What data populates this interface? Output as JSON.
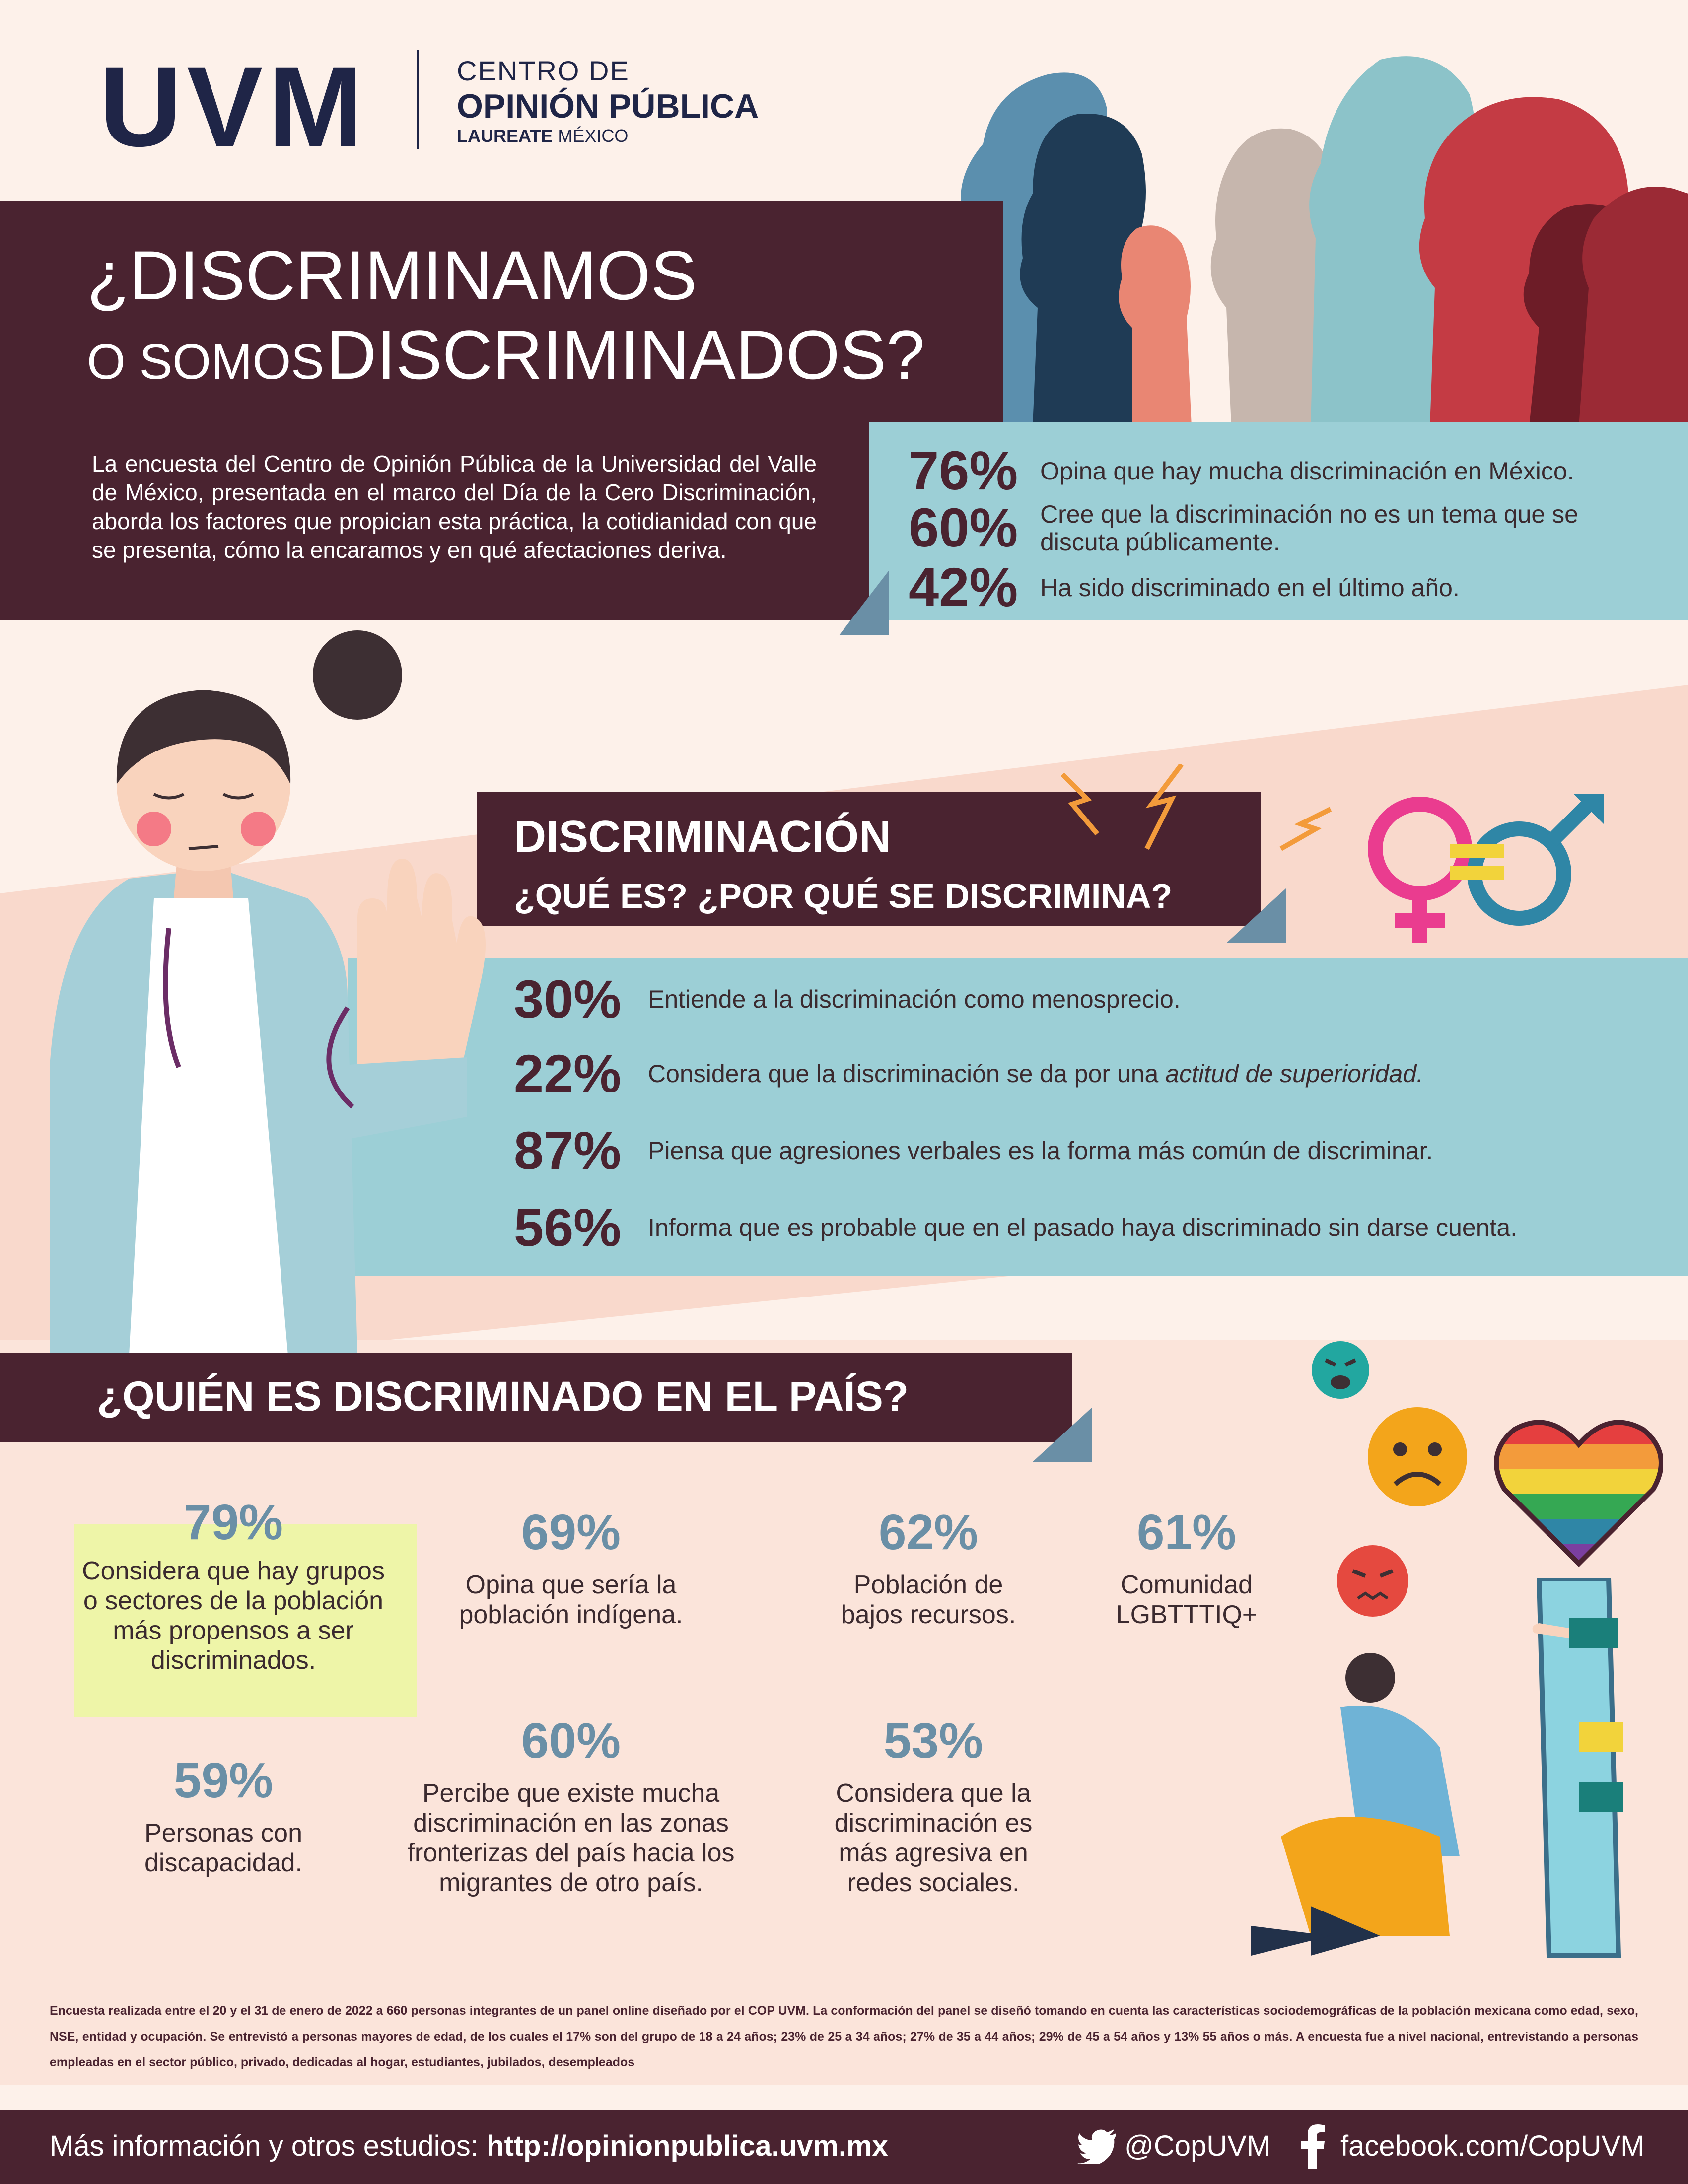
{
  "brand": {
    "logo": "UVM",
    "line1": "CENTRO DE",
    "line2": "OPINIÓN PÚBLICA",
    "line3a": "LAUREATE",
    "line3b": "MÉXICO"
  },
  "header": {
    "title_line1": "¿DISCRIMINAMOS",
    "title_line2_small": "O SOMOS",
    "title_line2_big": "DISCRIMINADOS?",
    "intro": "La encuesta del Centro de Opinión Pública de la Universidad del Valle de México, presentada en el marco del Día de la Cero Discriminación, aborda los factores que propician esta práctica, la cotidianidad con que se presenta, cómo la encaramos y en qué afectaciones deriva."
  },
  "top_stats": [
    {
      "pct": "76%",
      "text": "Opina que hay mucha discriminación en México."
    },
    {
      "pct": "60%",
      "text": "Cree que la discriminación no es un tema que se discuta públicamente."
    },
    {
      "pct": "42%",
      "text": "Ha sido discriminado en el último año."
    }
  ],
  "section2": {
    "title1": "DISCRIMINACIÓN",
    "title2": "¿QUÉ ES? ¿POR QUÉ SE DISCRIMINA?",
    "stats": [
      {
        "pct": "30%",
        "text": "Entiende a la discriminación como menosprecio."
      },
      {
        "pct": "22%",
        "text": "Considera que la discriminación se da por una",
        "emph": "actitud de superioridad."
      },
      {
        "pct": "87%",
        "text": "Piensa que agresiones verbales es la forma más común de discriminar."
      },
      {
        "pct": "56%",
        "text": "Informa que es probable que en el pasado haya discriminado sin darse cuenta."
      }
    ]
  },
  "section3": {
    "title": "¿QUIÉN ES DISCRIMINADO EN EL PAÍS?",
    "items": [
      {
        "pct": "79%",
        "text": "Considera que hay grupos o sectores de la población más propensos a ser discriminados."
      },
      {
        "pct": "69%",
        "text": "Opina que sería la población indígena."
      },
      {
        "pct": "62%",
        "text": "Población de bajos recursos."
      },
      {
        "pct": "61%",
        "text": "Comunidad LGBTTTIQ+"
      },
      {
        "pct": "59%",
        "text": "Personas con discapacidad."
      },
      {
        "pct": "60%",
        "text": "Percibe que existe mucha discriminación en las zonas fronterizas del país hacia los migrantes de otro país."
      },
      {
        "pct": "53%",
        "text": "Considera que la discriminación es más agresiva en redes sociales."
      }
    ]
  },
  "footnote": "Encuesta realizada entre el 20 y el 31 de enero de 2022 a 660 personas integrantes de un panel online diseñado por el COP UVM. La conformación del panel se diseñó tomando en cuenta las características sociodemográficas de la población mexicana como edad, sexo, NSE, entidad y ocupación. Se entrevistó a personas mayores de edad, de los cuales el 17% son del grupo de 18 a 24 años; 23% de 25 a 34 años; 27% de 35 a 44 años; 29% de 45 a 54 años y 13% 55 años o más. A encuesta fue a nivel nacional, entrevistando a personas empleadas en el sector público, privado, dedicadas al hogar, estudiantes, jubilados, desempleados",
  "footer": {
    "more_label": "Más información y otros estudios:",
    "url": "http://opinionpublica.uvm.mx",
    "twitter": "@CopUVM",
    "facebook": "facebook.com/CopUVM"
  },
  "colors": {
    "maroon": "#4a2330",
    "teal": "#9ccfd6",
    "slate_blue": "#6a8fa6",
    "cream": "#fdf1ea",
    "highlight": "#eef5a8"
  }
}
